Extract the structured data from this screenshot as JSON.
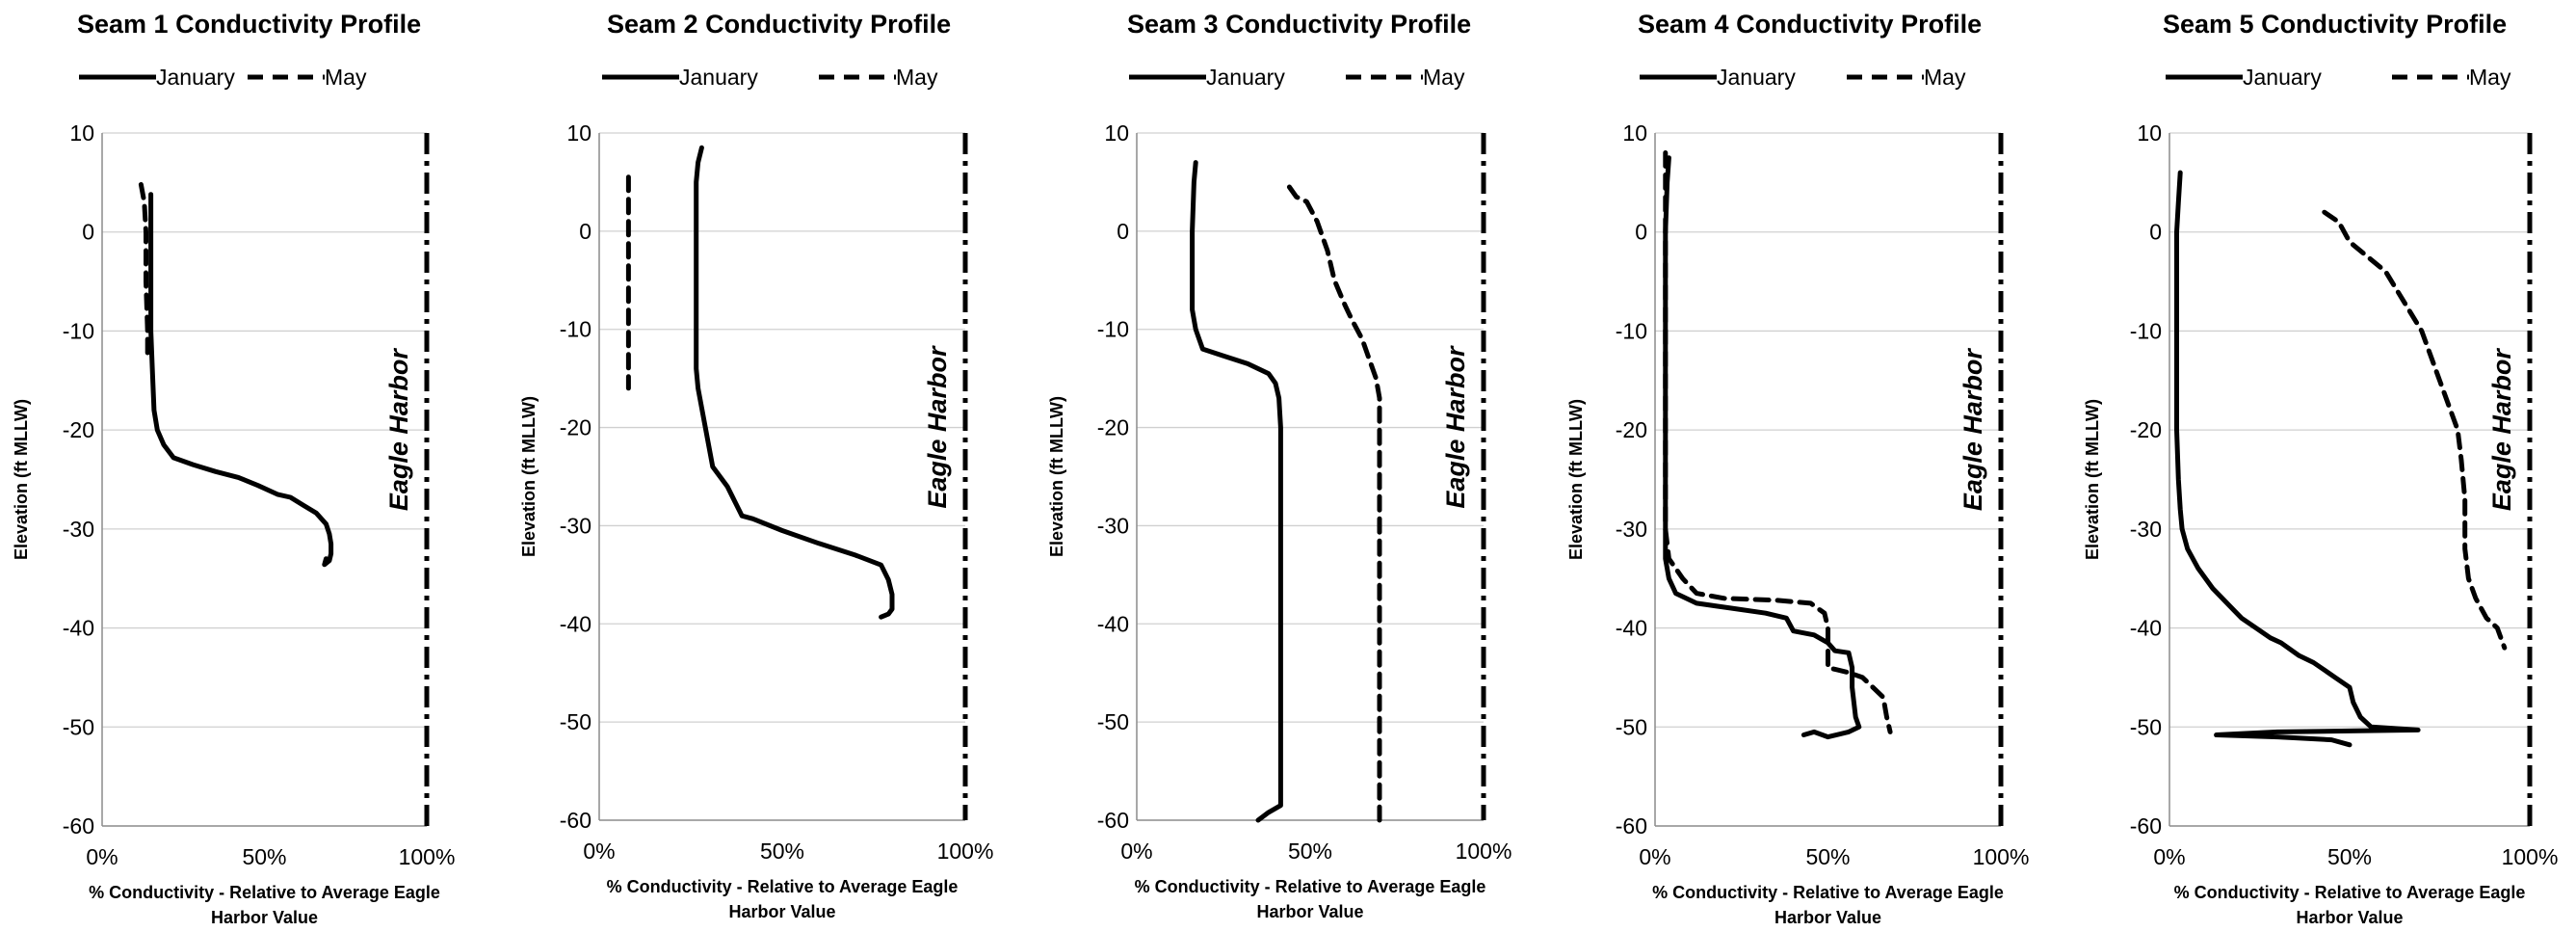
{
  "chart_data": [
    {
      "type": "line",
      "title": "Seam 1 Conductivity Profile",
      "xlabel": "% Conductivity - Relative to Average Eagle Harbor Value",
      "ylabel": "Elevation (ft MLLW)",
      "xlim": [
        0,
        100
      ],
      "ylim": [
        -60,
        10
      ],
      "xticks": [
        "0%",
        "50%",
        "100%"
      ],
      "yticks": [
        "10",
        "0",
        "-10",
        "-20",
        "-30",
        "-40",
        "-50",
        "-60"
      ],
      "grid": true,
      "legend": "top",
      "reference": {
        "label": "Eagle Harbor",
        "x": 100
      },
      "series": [
        {
          "name": "January",
          "style": "solid",
          "points": [
            [
              15,
              3.8
            ],
            [
              15,
              -2
            ],
            [
              15,
              -10
            ],
            [
              15.5,
              -14
            ],
            [
              16,
              -18
            ],
            [
              17,
              -20
            ],
            [
              19,
              -21.5
            ],
            [
              22,
              -22.8
            ],
            [
              28,
              -23.5
            ],
            [
              35,
              -24.2
            ],
            [
              42,
              -24.8
            ],
            [
              48,
              -25.6
            ],
            [
              54,
              -26.5
            ],
            [
              58,
              -26.8
            ],
            [
              62,
              -27.6
            ],
            [
              66,
              -28.4
            ],
            [
              69,
              -29.5
            ],
            [
              70,
              -30.5
            ],
            [
              70.5,
              -31.5
            ],
            [
              70.5,
              -32.5
            ],
            [
              70,
              -33.2
            ],
            [
              68.5,
              -33.6
            ],
            [
              69,
              -33
            ]
          ]
        },
        {
          "name": "May",
          "style": "dashed",
          "points": [
            [
              12,
              4.8
            ],
            [
              13,
              3
            ],
            [
              13.5,
              0
            ],
            [
              13.5,
              -5
            ],
            [
              14,
              -10
            ],
            [
              14,
              -13
            ]
          ]
        }
      ]
    },
    {
      "type": "line",
      "title": "Seam 2 Conductivity Profile",
      "xlabel": "% Conductivity - Relative to Average Eagle Harbor Value",
      "ylabel": "Elevation (ft MLLW)",
      "xlim": [
        0,
        100
      ],
      "ylim": [
        -60,
        10
      ],
      "xticks": [
        "0%",
        "50%",
        "100%"
      ],
      "yticks": [
        "10",
        "0",
        "-10",
        "-20",
        "-30",
        "-40",
        "-50",
        "-60"
      ],
      "grid": true,
      "legend": "top",
      "reference": {
        "label": "Eagle Harbor",
        "x": 100
      },
      "series": [
        {
          "name": "January",
          "style": "solid",
          "points": [
            [
              28,
              8.5
            ],
            [
              27,
              7
            ],
            [
              26.5,
              5
            ],
            [
              26.5,
              0
            ],
            [
              26.5,
              -5
            ],
            [
              26.5,
              -10
            ],
            [
              26.5,
              -14
            ],
            [
              27,
              -16
            ],
            [
              28,
              -18
            ],
            [
              29,
              -20
            ],
            [
              30,
              -22
            ],
            [
              31,
              -24
            ],
            [
              33,
              -25
            ],
            [
              35,
              -26
            ],
            [
              37,
              -27.5
            ],
            [
              39,
              -29
            ],
            [
              42,
              -29.3
            ],
            [
              50,
              -30.5
            ],
            [
              60,
              -31.8
            ],
            [
              70,
              -33
            ],
            [
              77,
              -34
            ],
            [
              79,
              -35.5
            ],
            [
              80,
              -37
            ],
            [
              80,
              -38.5
            ],
            [
              79,
              -39
            ],
            [
              77,
              -39.3
            ]
          ]
        },
        {
          "name": "May",
          "style": "dashed",
          "points": [
            [
              8,
              5.5
            ],
            [
              8,
              0
            ],
            [
              8,
              -5
            ],
            [
              8,
              -10
            ],
            [
              8,
              -16
            ]
          ]
        }
      ]
    },
    {
      "type": "line",
      "title": "Seam 3 Conductivity Profile",
      "xlabel": "% Conductivity - Relative to Average Eagle Harbor Value",
      "ylabel": "Elevation (ft MLLW)",
      "xlim": [
        0,
        100
      ],
      "ylim": [
        -60,
        10
      ],
      "xticks": [
        "0%",
        "50%",
        "100%"
      ],
      "yticks": [
        "10",
        "0",
        "-10",
        "-20",
        "-30",
        "-40",
        "-50",
        "-60"
      ],
      "grid": true,
      "legend": "top",
      "reference": {
        "label": "Eagle Harbor",
        "x": 100
      },
      "series": [
        {
          "name": "January",
          "style": "solid",
          "points": [
            [
              17,
              7
            ],
            [
              16.5,
              5
            ],
            [
              16,
              0
            ],
            [
              16,
              -5
            ],
            [
              16,
              -8
            ],
            [
              17,
              -10
            ],
            [
              18,
              -11
            ],
            [
              19,
              -12
            ],
            [
              25,
              -12.7
            ],
            [
              32,
              -13.5
            ],
            [
              38,
              -14.5
            ],
            [
              40,
              -15.5
            ],
            [
              41,
              -17
            ],
            [
              41.5,
              -20
            ],
            [
              41.5,
              -30
            ],
            [
              41.5,
              -40
            ],
            [
              41.5,
              -50
            ],
            [
              41.5,
              -58.5
            ],
            [
              38,
              -59.2
            ],
            [
              35,
              -60
            ]
          ]
        },
        {
          "name": "May",
          "style": "dashed",
          "points": [
            [
              44,
              4.5
            ],
            [
              46,
              3.5
            ],
            [
              49,
              3
            ],
            [
              52,
              1
            ],
            [
              55,
              -2
            ],
            [
              57,
              -5
            ],
            [
              60,
              -7.5
            ],
            [
              62,
              -9
            ],
            [
              65,
              -11
            ],
            [
              67,
              -13
            ],
            [
              69,
              -15
            ],
            [
              70,
              -17
            ],
            [
              70,
              -20
            ],
            [
              70,
              -30
            ],
            [
              70,
              -40
            ],
            [
              70,
              -50
            ],
            [
              70,
              -60
            ]
          ]
        }
      ]
    },
    {
      "type": "line",
      "title": "Seam 4 Conductivity Profile",
      "xlabel": "% Conductivity - Relative to Average Eagle Harbor Value",
      "ylabel": "Elevation (ft MLLW)",
      "xlim": [
        0,
        100
      ],
      "ylim": [
        -60,
        10
      ],
      "xticks": [
        "0%",
        "50%",
        "100%"
      ],
      "yticks": [
        "10",
        "0",
        "-10",
        "-20",
        "-30",
        "-40",
        "-50",
        "-60"
      ],
      "grid": true,
      "legend": "top",
      "reference": {
        "label": "Eagle Harbor",
        "x": 100
      },
      "series": [
        {
          "name": "January",
          "style": "solid",
          "points": [
            [
              4,
              7.5
            ],
            [
              3.5,
              5
            ],
            [
              3,
              0
            ],
            [
              3,
              -10
            ],
            [
              3,
              -20
            ],
            [
              3,
              -30
            ],
            [
              3,
              -33
            ],
            [
              4,
              -35
            ],
            [
              6,
              -36.5
            ],
            [
              12,
              -37.5
            ],
            [
              22,
              -38
            ],
            [
              32,
              -38.5
            ],
            [
              38,
              -39
            ],
            [
              40,
              -40.3
            ],
            [
              46,
              -40.7
            ],
            [
              50,
              -41.5
            ],
            [
              52,
              -42.3
            ],
            [
              56,
              -42.5
            ],
            [
              57,
              -44
            ],
            [
              57,
              -46
            ],
            [
              58,
              -49
            ],
            [
              59,
              -50
            ],
            [
              56,
              -50.5
            ],
            [
              50,
              -51
            ],
            [
              46,
              -50.5
            ],
            [
              43,
              -50.8
            ]
          ]
        },
        {
          "name": "May",
          "style": "dashed",
          "points": [
            [
              3,
              8
            ],
            [
              3,
              0
            ],
            [
              3,
              -10
            ],
            [
              3,
              -20
            ],
            [
              3,
              -30
            ],
            [
              4,
              -33
            ],
            [
              8,
              -35
            ],
            [
              12,
              -36.5
            ],
            [
              20,
              -37
            ],
            [
              35,
              -37.2
            ],
            [
              45,
              -37.5
            ],
            [
              49,
              -38.5
            ],
            [
              50,
              -40
            ],
            [
              50,
              -44
            ],
            [
              56,
              -44.5
            ],
            [
              60,
              -45
            ],
            [
              63,
              -46
            ],
            [
              66,
              -47
            ],
            [
              67,
              -49
            ],
            [
              68,
              -50.5
            ]
          ]
        }
      ]
    },
    {
      "type": "line",
      "title": "Seam 5 Conductivity Profile",
      "xlabel": "% Conductivity - Relative to Average Eagle Harbor Value",
      "ylabel": "Elevation (ft MLLW)",
      "xlim": [
        0,
        100
      ],
      "ylim": [
        -60,
        10
      ],
      "xticks": [
        "0%",
        "50%",
        "100%"
      ],
      "yticks": [
        "10",
        "0",
        "-10",
        "-20",
        "-30",
        "-40",
        "-50",
        "-60"
      ],
      "grid": true,
      "legend": "top",
      "reference": {
        "label": "Eagle Harbor",
        "x": 100
      },
      "series": [
        {
          "name": "January",
          "style": "solid",
          "points": [
            [
              3,
              6
            ],
            [
              2.5,
              3
            ],
            [
              2,
              0
            ],
            [
              2,
              -5
            ],
            [
              2,
              -10
            ],
            [
              2,
              -15
            ],
            [
              2,
              -20
            ],
            [
              2.5,
              -25
            ],
            [
              3,
              -28
            ],
            [
              3.5,
              -30
            ],
            [
              5,
              -32
            ],
            [
              8,
              -34
            ],
            [
              12,
              -36
            ],
            [
              16,
              -37.5
            ],
            [
              20,
              -39
            ],
            [
              24,
              -40
            ],
            [
              28,
              -41
            ],
            [
              31,
              -41.5
            ],
            [
              36,
              -42.8
            ],
            [
              40,
              -43.5
            ],
            [
              46,
              -45
            ],
            [
              50,
              -46
            ],
            [
              51,
              -47.5
            ],
            [
              53,
              -49
            ],
            [
              56,
              -50
            ],
            [
              69,
              -50.3
            ],
            [
              50,
              -50.4
            ],
            [
              30,
              -50.5
            ],
            [
              13,
              -50.8
            ],
            [
              30,
              -51
            ],
            [
              45,
              -51.3
            ],
            [
              50,
              -51.8
            ]
          ]
        },
        {
          "name": "May",
          "style": "dashed",
          "points": [
            [
              43,
              2
            ],
            [
              47,
              1
            ],
            [
              50,
              -1
            ],
            [
              55,
              -2.5
            ],
            [
              60,
              -4
            ],
            [
              65,
              -7
            ],
            [
              70,
              -10
            ],
            [
              75,
              -15
            ],
            [
              78,
              -18
            ],
            [
              80,
              -20
            ],
            [
              81,
              -23
            ],
            [
              82,
              -27
            ],
            [
              82,
              -32
            ],
            [
              83,
              -35
            ],
            [
              85,
              -37
            ],
            [
              88,
              -39
            ],
            [
              91,
              -40
            ],
            [
              93,
              -42
            ]
          ]
        }
      ]
    }
  ]
}
